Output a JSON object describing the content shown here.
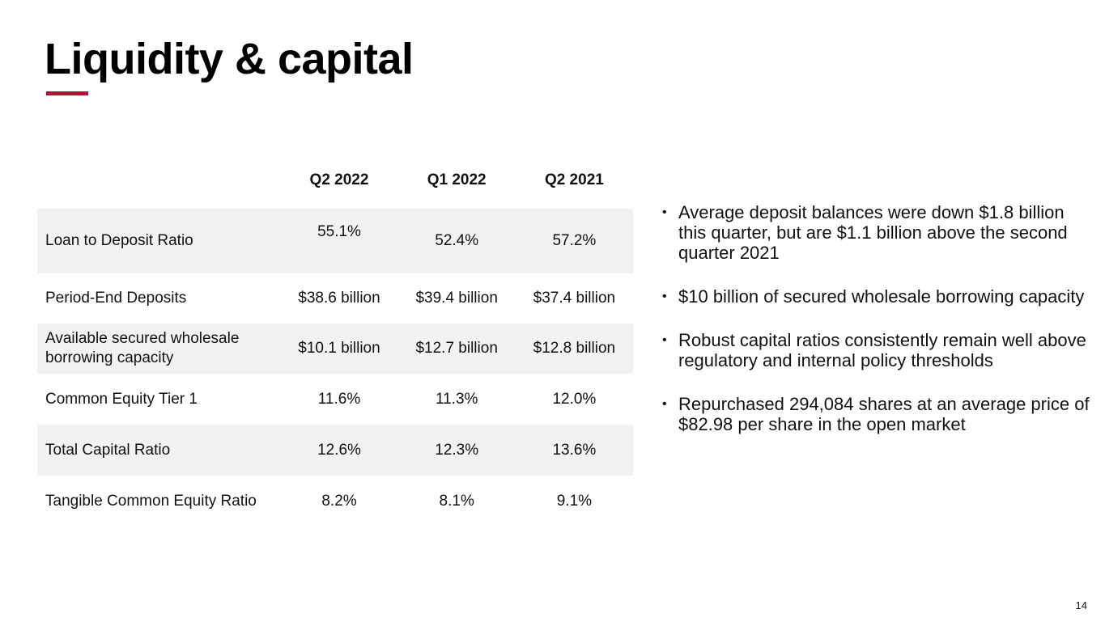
{
  "slide": {
    "title": "Liquidity & capital",
    "accent_color": "#b8102f",
    "page_number": "14"
  },
  "table": {
    "headers": [
      "",
      "Q2 2022",
      "Q1 2022",
      "Q2 2021"
    ],
    "rows": [
      {
        "label": "Loan to Deposit Ratio",
        "values": [
          "55.1%",
          "52.4%",
          "57.2%"
        ]
      },
      {
        "label": "Period-End Deposits",
        "values": [
          "$38.6 billion",
          "$39.4 billion",
          "$37.4 billion"
        ]
      },
      {
        "label": "Available secured wholesale borrowing capacity",
        "values": [
          "$10.1 billion",
          "$12.7 billion",
          "$12.8 billion"
        ]
      },
      {
        "label": "Common Equity Tier 1",
        "values": [
          "11.6%",
          "11.3%",
          "12.0%"
        ]
      },
      {
        "label": "Total Capital Ratio",
        "values": [
          "12.6%",
          "12.3%",
          "13.6%"
        ]
      },
      {
        "label": "Tangible Common Equity Ratio",
        "values": [
          "8.2%",
          "8.1%",
          "9.1%"
        ]
      }
    ],
    "shade_color": "#f2f2f2"
  },
  "bullets": [
    "Average deposit balances were down $1.8 billion this quarter, but are $1.1 billion above the second quarter 2021",
    "$10 billion of secured wholesale borrowing capacity",
    "Robust capital ratios consistently remain well above regulatory and internal policy thresholds",
    "Repurchased 294,084 shares at an average price of $82.98 per share in the open market"
  ],
  "bullet_glyph": "•"
}
